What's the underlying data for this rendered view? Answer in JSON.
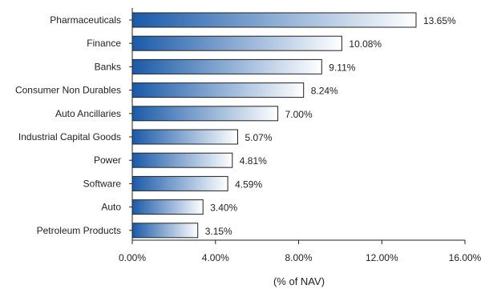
{
  "chart_data": {
    "type": "bar",
    "orientation": "horizontal",
    "categories": [
      "Pharmaceuticals",
      "Finance",
      "Banks",
      "Consumer Non Durables",
      "Auto Ancillaries",
      "Industrial Capital Goods",
      "Power",
      "Software",
      "Auto",
      "Petroleum Products"
    ],
    "values": [
      13.65,
      10.08,
      9.11,
      8.24,
      7.0,
      5.07,
      4.81,
      4.59,
      3.4,
      3.15
    ],
    "value_labels": [
      "13.65%",
      "10.08%",
      "9.11%",
      "8.24%",
      "7.00%",
      "5.07%",
      "4.81%",
      "4.59%",
      "3.40%",
      "3.15%"
    ],
    "xlim": [
      0,
      16
    ],
    "x_ticks": [
      0,
      4,
      8,
      12,
      16
    ],
    "x_tick_labels": [
      "0.00%",
      "4.00%",
      "8.00%",
      "12.00%",
      "16.00%"
    ],
    "xlabel": "(% of NAV)",
    "ylabel": "",
    "title": "",
    "grid": false,
    "legend": "none",
    "colors": {
      "bar_dark": "#1a5aa8",
      "bar_light": "#ffffff",
      "bar_border": "#222222",
      "axis": "#222222"
    }
  }
}
